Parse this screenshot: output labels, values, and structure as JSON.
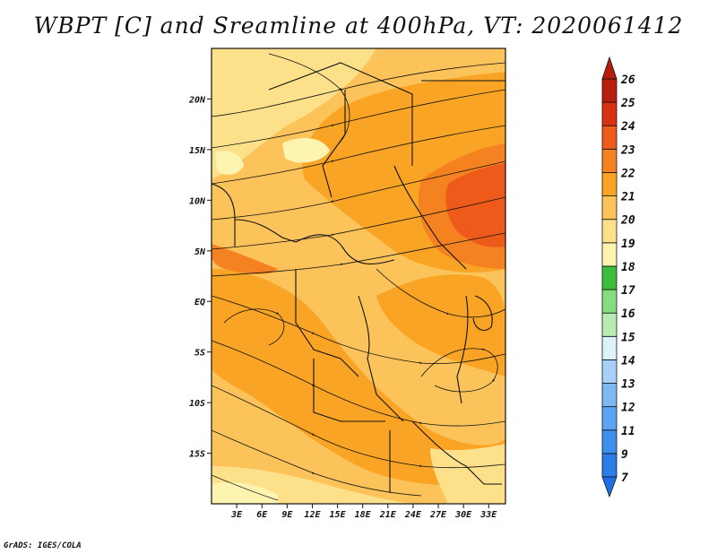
{
  "title": "WBPT [C] and Sreamline at 400hPa, VT: 2020061412",
  "credit": "GrADS: IGES/COLA",
  "map": {
    "lat_range": [
      -20,
      25
    ],
    "lon_range": [
      0,
      35
    ],
    "lat_ticks": [
      {
        "label": "20N",
        "value": 20
      },
      {
        "label": "15N",
        "value": 15
      },
      {
        "label": "10N",
        "value": 10
      },
      {
        "label": "5N",
        "value": 5
      },
      {
        "label": "EQ",
        "value": 0
      },
      {
        "label": "5S",
        "value": -5
      },
      {
        "label": "10S",
        "value": -10
      },
      {
        "label": "15S",
        "value": -15
      }
    ],
    "lon_ticks": [
      {
        "label": "3E",
        "value": 3
      },
      {
        "label": "6E",
        "value": 6
      },
      {
        "label": "9E",
        "value": 9
      },
      {
        "label": "12E",
        "value": 12
      },
      {
        "label": "15E",
        "value": 15
      },
      {
        "label": "18E",
        "value": 18
      },
      {
        "label": "21E",
        "value": 21
      },
      {
        "label": "24E",
        "value": 24
      },
      {
        "label": "27E",
        "value": 27
      },
      {
        "label": "30E",
        "value": 30
      },
      {
        "label": "33E",
        "value": 33
      }
    ]
  },
  "colorbar": {
    "levels": [
      {
        "label": "7",
        "color": "#1e6ee6"
      },
      {
        "label": "9",
        "color": "#2b7ee8"
      },
      {
        "label": "11",
        "color": "#3c8fed"
      },
      {
        "label": "12",
        "color": "#5aa4f1"
      },
      {
        "label": "13",
        "color": "#7eb9f4"
      },
      {
        "label": "14",
        "color": "#a6d0f7"
      },
      {
        "label": "15",
        "color": "#dcf3fb"
      },
      {
        "label": "16",
        "color": "#b8ecb2"
      },
      {
        "label": "17",
        "color": "#86dc7e"
      },
      {
        "label": "18",
        "color": "#3cbe3c"
      },
      {
        "label": "19",
        "color": "#fcf4b0"
      },
      {
        "label": "20",
        "color": "#fde08a"
      },
      {
        "label": "21",
        "color": "#fbc35a"
      },
      {
        "label": "22",
        "color": "#f9a424"
      },
      {
        "label": "23",
        "color": "#f58220"
      },
      {
        "label": "24",
        "color": "#ee5a1a"
      },
      {
        "label": "25",
        "color": "#d93012"
      },
      {
        "label": "26",
        "color": "#b61d0c"
      }
    ]
  }
}
